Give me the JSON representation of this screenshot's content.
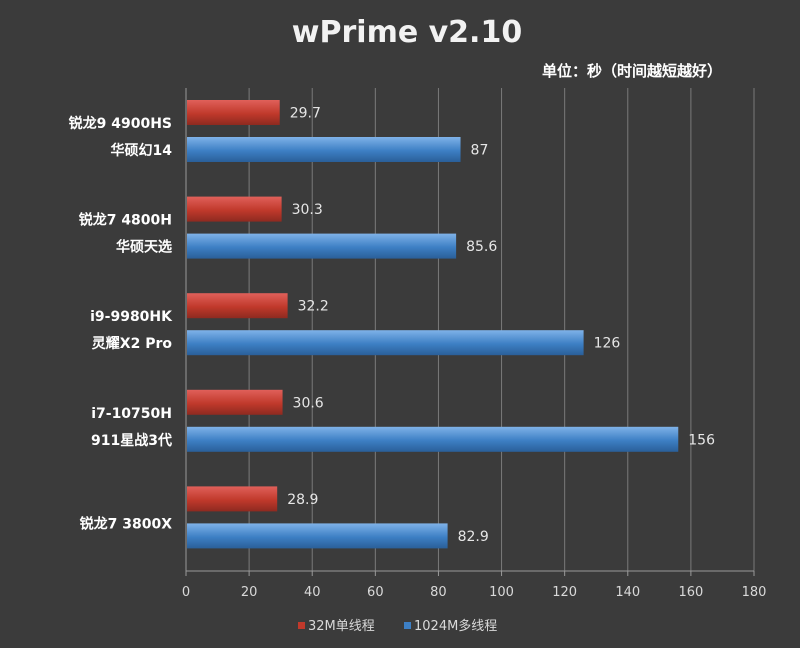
{
  "chart_data": {
    "type": "bar",
    "orientation": "horizontal",
    "title": "wPrime v2.10",
    "subtitle": "单位：秒（时间越短越好）",
    "categories": [
      [
        "锐龙9 4900HS",
        "华硕幻14"
      ],
      [
        "锐龙7 4800H",
        "华硕天选"
      ],
      [
        "i9-9980HK",
        "灵耀X2 Pro"
      ],
      [
        "i7-10750H",
        "911星战3代"
      ],
      [
        "锐龙7 3800X"
      ]
    ],
    "series": [
      {
        "name": "32M单线程",
        "color": "#c0392b",
        "values": [
          29.7,
          30.3,
          32.2,
          30.6,
          28.9
        ]
      },
      {
        "name": "1024M多线程",
        "color": "#3d7fc4",
        "values": [
          87,
          85.6,
          126,
          156,
          82.9
        ]
      }
    ],
    "xlim": [
      0,
      180
    ],
    "xticks": [
      0,
      20,
      40,
      60,
      80,
      100,
      120,
      140,
      160,
      180
    ],
    "grid": true,
    "legend_position": "bottom"
  }
}
